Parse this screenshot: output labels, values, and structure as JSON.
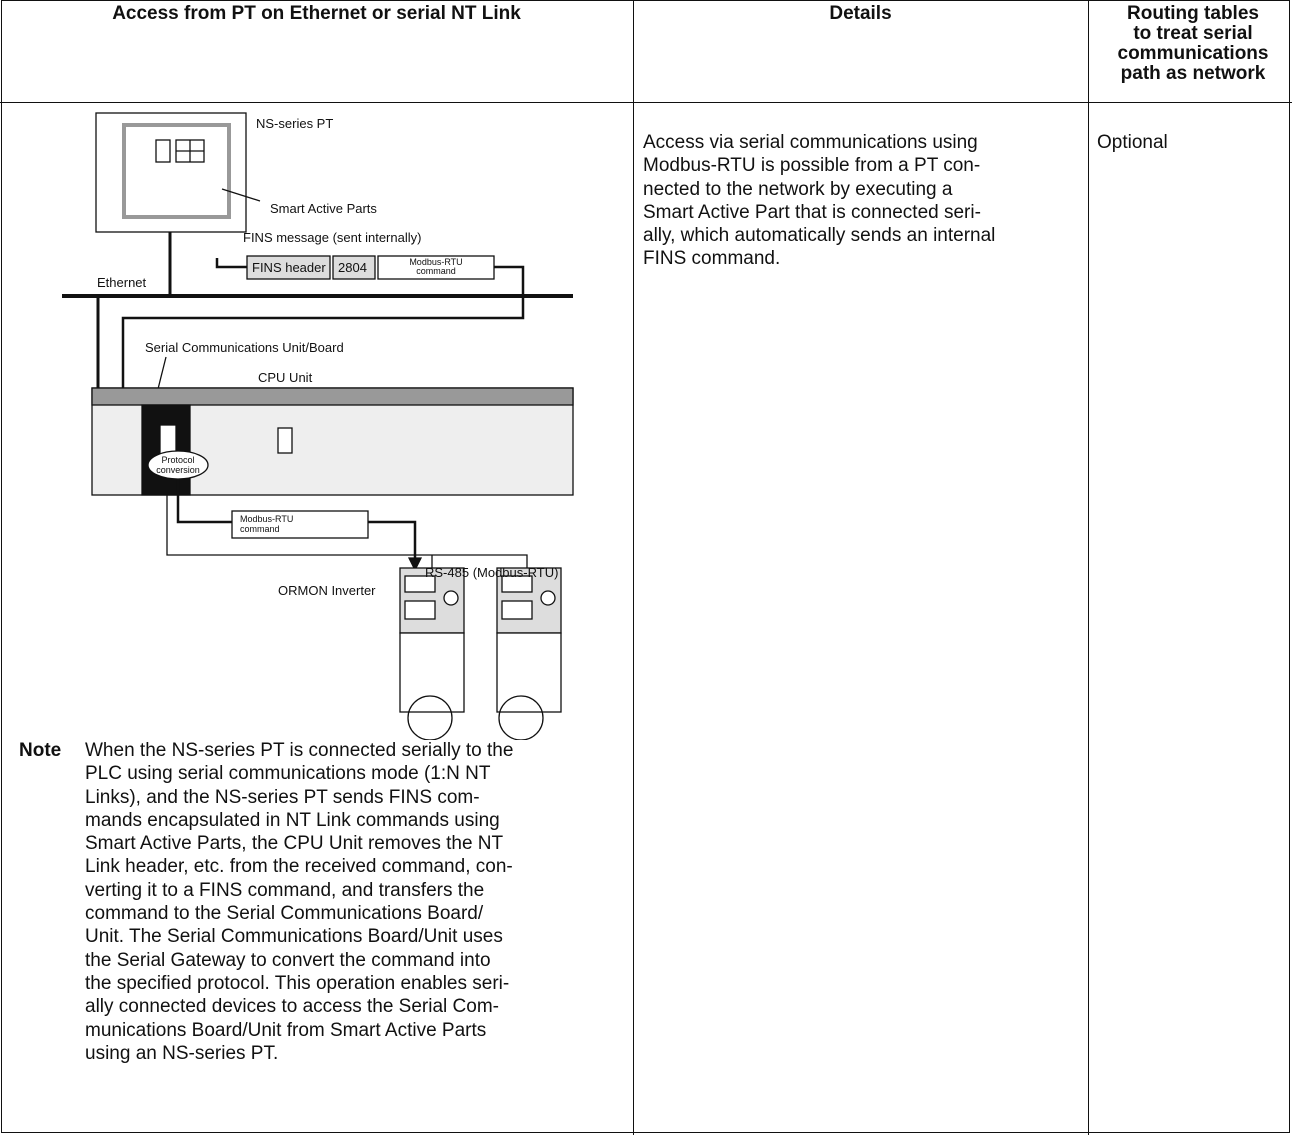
{
  "table": {
    "headers": [
      [
        "Access from PT on Ethernet or serial NT Link"
      ],
      [
        "Details"
      ],
      [
        "Routing tables",
        "to treat serial",
        "communications",
        "path as network"
      ]
    ],
    "diagram": {
      "pt_label": "NS-series PT",
      "smart_label": "Smart Active Parts",
      "fins_message": "FINS message (sent internally)",
      "fins_header": "FINS header",
      "fins_code": "2804",
      "modbus_cmd_1": [
        "Modbus-RTU",
        "command"
      ],
      "ethernet": "Ethernet",
      "serial_unit": "Serial Communications Unit/Board",
      "cpu_unit": "CPU Unit",
      "protocol": [
        "Protocol",
        "conversion"
      ],
      "modbus_cmd_2": [
        "Modbus-RTU",
        "command"
      ],
      "rs485": "RS-485 (Modbus-RTU)",
      "inverter": "ORMON Inverter"
    },
    "note_label": "Note",
    "note_lines": [
      "When the NS-series PT is connected serially to the",
      "PLC using serial communications mode (1:N NT",
      "Links), and the NS-series PT sends FINS com-",
      "mands encapsulated in NT Link commands using",
      "Smart Active Parts, the CPU Unit removes the NT",
      "Link header, etc. from the received command, con-",
      "verting it to a FINS command, and transfers the",
      "command to the Serial Communications Board/",
      "Unit. The Serial Communications Board/Unit uses",
      "the Serial Gateway to convert the command into",
      "the specified protocol. This operation enables seri-",
      "ally connected devices to access the Serial Com-",
      "munications Board/Unit from Smart Active Parts",
      "using an NS-series PT."
    ],
    "details_lines": [
      "Access via serial communications using",
      "Modbus-RTU is possible from a PT con-",
      "nected to the network by executing a",
      "Smart Active Part that is connected seri-",
      "ally, which automatically sends an internal",
      "FINS command."
    ],
    "routing": "Optional"
  }
}
